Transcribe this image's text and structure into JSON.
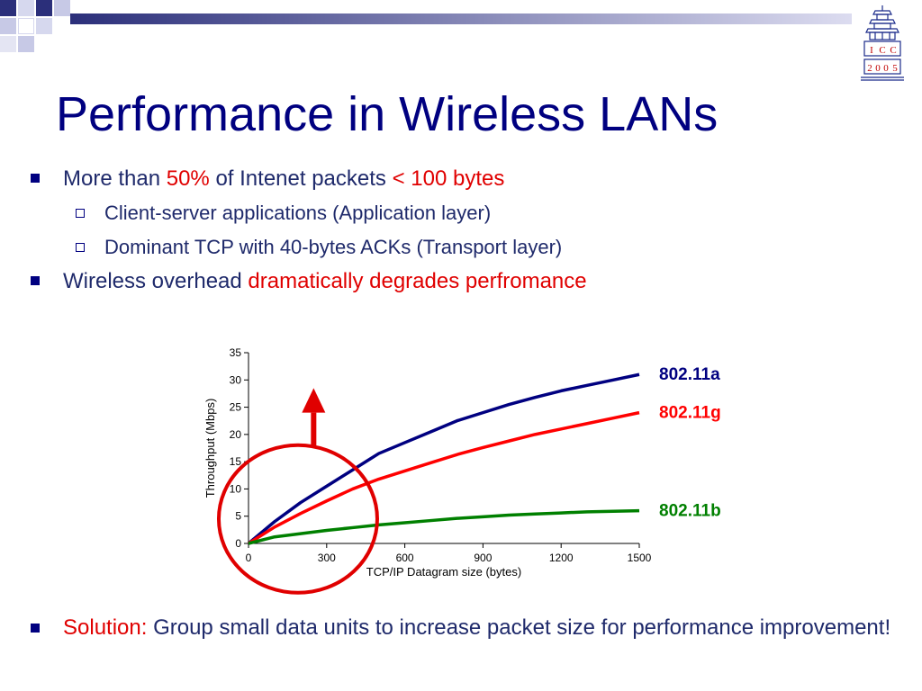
{
  "slide": {
    "title": "Performance in Wireless LANs",
    "logo_text": [
      "I",
      "C",
      "C",
      "2",
      "0",
      "0",
      "5"
    ],
    "bullet1": {
      "text_a": "More than ",
      "hl1": "50%",
      "text_b": " of Intenet packets ",
      "hl2": "< 100 bytes"
    },
    "sub1": "Client-server applications (Application layer)",
    "sub2": "Dominant TCP with 40-bytes ACKs (Transport layer)",
    "bullet2": {
      "text_a": "Wireless overhead ",
      "hl": "dramatically degrades perfromance"
    },
    "bullet3": {
      "hl": "Solution:",
      "text": " Group small data units to increase packet size for performance improvement!"
    }
  },
  "colors": {
    "title": "#000080",
    "body_text": "#1f2a6b",
    "highlight": "#e00000",
    "series_a": "#000080",
    "series_g": "#ff0000",
    "series_b": "#008000",
    "annotation": "#e00000"
  },
  "chart_data": {
    "type": "line",
    "xlabel": "TCP/IP Datagram size (bytes)",
    "ylabel": "Throughput (Mbps)",
    "xlim": [
      0,
      1500
    ],
    "ylim": [
      0,
      35
    ],
    "xticks": [
      0,
      300,
      600,
      900,
      1200,
      1500
    ],
    "yticks": [
      0,
      5,
      10,
      15,
      20,
      25,
      30,
      35
    ],
    "grid": false,
    "legend": "labels at line ends (right)",
    "series": [
      {
        "name": "802.11a",
        "color": "#000080",
        "x": [
          0,
          100,
          200,
          300,
          400,
          500,
          600,
          700,
          800,
          900,
          1000,
          1100,
          1200,
          1300,
          1400,
          1500
        ],
        "y": [
          0,
          4,
          7.5,
          10.5,
          13.5,
          16.5,
          18.5,
          20.5,
          22.5,
          24,
          25.5,
          26.8,
          28,
          29,
          30,
          31
        ]
      },
      {
        "name": "802.11g",
        "color": "#ff0000",
        "x": [
          0,
          100,
          200,
          300,
          400,
          500,
          600,
          700,
          800,
          900,
          1000,
          1100,
          1200,
          1300,
          1400,
          1500
        ],
        "y": [
          0,
          3,
          5.5,
          7.8,
          10,
          11.8,
          13.3,
          14.8,
          16.3,
          17.6,
          18.8,
          20,
          21,
          22,
          23,
          24
        ]
      },
      {
        "name": "802.11b",
        "color": "#008000",
        "x": [
          0,
          100,
          200,
          300,
          400,
          500,
          600,
          700,
          800,
          900,
          1000,
          1100,
          1200,
          1300,
          1400,
          1500
        ],
        "y": [
          0,
          1.2,
          1.8,
          2.4,
          2.9,
          3.4,
          3.8,
          4.2,
          4.6,
          4.9,
          5.2,
          5.4,
          5.6,
          5.8,
          5.9,
          6.0
        ]
      }
    ]
  }
}
